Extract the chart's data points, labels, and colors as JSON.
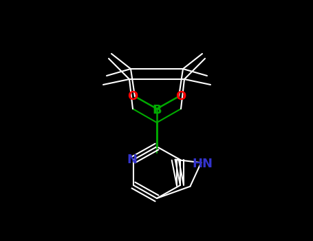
{
  "background_color": "#000000",
  "bond_color": "#ffffff",
  "n_color": "#3333cc",
  "o_color": "#ff0000",
  "b_color": "#00aa00",
  "bond_width": 1.5,
  "figsize": [
    4.55,
    3.5
  ],
  "dpi": 100,
  "xlim": [
    0,
    455
  ],
  "ylim": [
    0,
    350
  ]
}
